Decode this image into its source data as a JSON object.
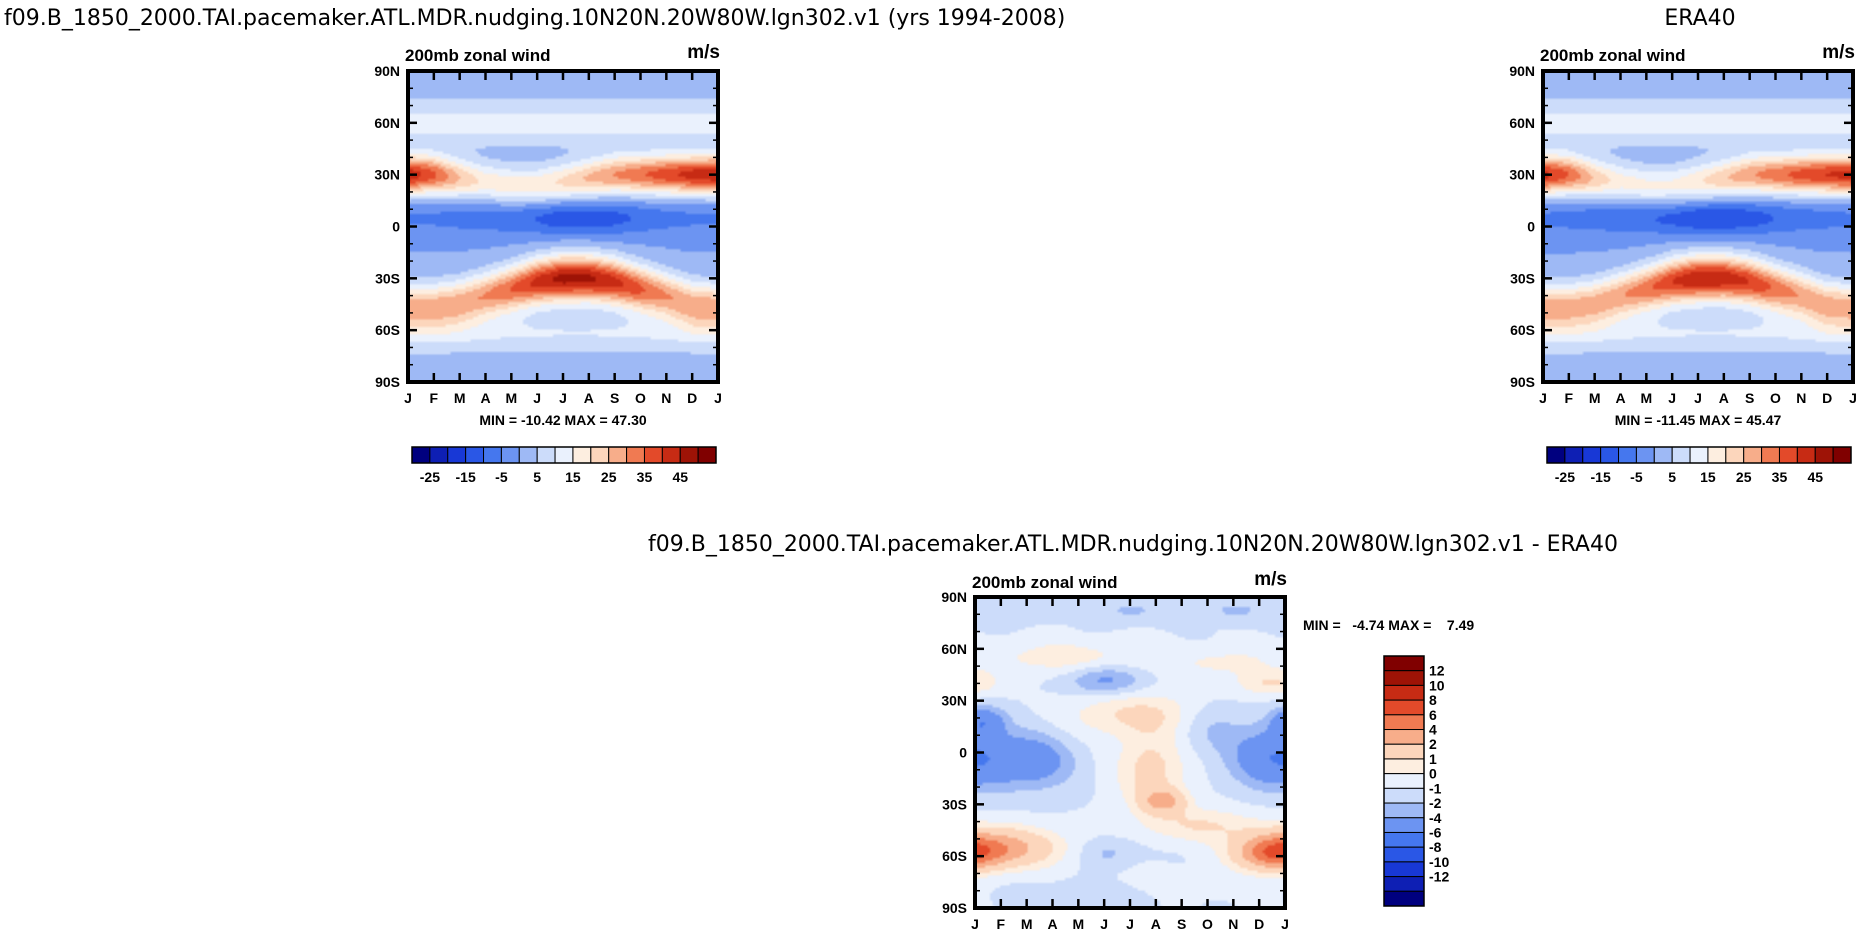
{
  "chart_data": [
    {
      "type": "heatmap",
      "title": "f09.B_1850_2000.TAI.pacemaker.ATL.MDR.nudging.10N20N.20W80W.lgn302.v1 (yrs 1994-2008)",
      "variable": "200mb zonal wind",
      "units": "m/s",
      "xlabel": "month",
      "ylabel": "latitude",
      "x_ticks": [
        "J",
        "F",
        "M",
        "A",
        "M",
        "J",
        "J",
        "A",
        "S",
        "O",
        "N",
        "D",
        "J"
      ],
      "y_ticks": [
        "90N",
        "60N",
        "30N",
        "0",
        "30S",
        "60S",
        "90S"
      ],
      "stats_text": "MIN = -10.42 MAX =  47.30",
      "min": -10.42,
      "max": 47.3,
      "levels": [
        -25,
        -20,
        -15,
        -10,
        -5,
        0,
        5,
        10,
        15,
        20,
        25,
        30,
        35,
        40,
        45
      ],
      "colorbar_labels": [
        "-25",
        "-15",
        "-5",
        "5",
        "15",
        "25",
        "35",
        "45"
      ],
      "colors": [
        "#00007f",
        "#0e1fb4",
        "#1838d6",
        "#2a57e6",
        "#4577ee",
        "#6c94f2",
        "#9eb9f5",
        "#ccdcfa",
        "#eaf1fd",
        "#fdeee0",
        "#fcd6bc",
        "#f7ad8a",
        "#f07a52",
        "#e34a2a",
        "#c72b14",
        "#9e1306",
        "#800000"
      ],
      "features": {
        "n_jet_strength": [
          44,
          36,
          25,
          18,
          18,
          18,
          21,
          26,
          30,
          34,
          38,
          42,
          44
        ],
        "n_jet_lat": [
          30,
          30,
          28,
          26,
          24,
          24,
          26,
          28,
          30,
          30,
          30,
          30,
          30
        ],
        "s_jet_strength": [
          27,
          27,
          28,
          30,
          35,
          42,
          47,
          46,
          42,
          36,
          30,
          28,
          27
        ],
        "s_jet_lat": [
          -46,
          -46,
          -44,
          -40,
          -36,
          -32,
          -30,
          -30,
          -32,
          -36,
          -40,
          -45,
          -46
        ],
        "eq_east": [
          -2,
          -2,
          -3,
          -4,
          -5,
          -7,
          -10,
          -10,
          -8,
          -5,
          -3,
          -2,
          -2
        ]
      }
    },
    {
      "type": "heatmap",
      "title": "ERA40",
      "variable": "200mb zonal wind",
      "units": "m/s",
      "xlabel": "month",
      "ylabel": "latitude",
      "x_ticks": [
        "J",
        "F",
        "M",
        "A",
        "M",
        "J",
        "J",
        "A",
        "S",
        "O",
        "N",
        "D",
        "J"
      ],
      "y_ticks": [
        "90N",
        "60N",
        "30N",
        "0",
        "30S",
        "60S",
        "90S"
      ],
      "stats_text": "MIN = -11.45 MAX =  45.47",
      "min": -11.45,
      "max": 45.47,
      "levels": [
        -25,
        -20,
        -15,
        -10,
        -5,
        0,
        5,
        10,
        15,
        20,
        25,
        30,
        35,
        40,
        45
      ],
      "colorbar_labels": [
        "-25",
        "-15",
        "-5",
        "5",
        "15",
        "25",
        "35",
        "45"
      ],
      "colors": [
        "#00007f",
        "#0e1fb4",
        "#1838d6",
        "#2a57e6",
        "#4577ee",
        "#6c94f2",
        "#9eb9f5",
        "#ccdcfa",
        "#eaf1fd",
        "#fdeee0",
        "#fcd6bc",
        "#f7ad8a",
        "#f07a52",
        "#e34a2a",
        "#c72b14",
        "#9e1306",
        "#800000"
      ],
      "features": {
        "n_jet_strength": [
          42,
          35,
          24,
          17,
          16,
          16,
          19,
          24,
          29,
          33,
          37,
          40,
          42
        ],
        "n_jet_lat": [
          30,
          30,
          28,
          26,
          24,
          24,
          26,
          28,
          30,
          30,
          30,
          30,
          30
        ],
        "s_jet_strength": [
          26,
          26,
          27,
          29,
          33,
          40,
          45,
          44,
          40,
          34,
          29,
          27,
          26
        ],
        "s_jet_lat": [
          -46,
          -46,
          -44,
          -40,
          -36,
          -32,
          -30,
          -30,
          -32,
          -36,
          -40,
          -45,
          -46
        ],
        "eq_east": [
          -2,
          -3,
          -4,
          -5,
          -6,
          -8,
          -11,
          -11,
          -9,
          -6,
          -4,
          -3,
          -2
        ]
      }
    },
    {
      "type": "heatmap",
      "title": "f09.B_1850_2000.TAI.pacemaker.ATL.MDR.nudging.10N20N.20W80W.lgn302.v1 - ERA40",
      "variable": "200mb zonal wind",
      "units": "m/s",
      "xlabel": "month",
      "ylabel": "latitude",
      "x_ticks": [
        "J",
        "F",
        "M",
        "A",
        "M",
        "J",
        "J",
        "A",
        "S",
        "O",
        "N",
        "D",
        "J"
      ],
      "y_ticks": [
        "90N",
        "60N",
        "30N",
        "0",
        "30S",
        "60S",
        "90S"
      ],
      "stats_text": "MIN =   -4.74 MAX =    7.49",
      "min": -4.74,
      "max": 7.49,
      "levels": [
        -12,
        -10,
        -8,
        -6,
        -4,
        -2,
        -1,
        0,
        1,
        2,
        4,
        6,
        8,
        10,
        12
      ],
      "colorbar_labels": [
        "12",
        "10",
        "8",
        "6",
        "4",
        "2",
        "1",
        "0",
        "-1",
        "-2",
        "-4",
        "-6",
        "-8",
        "-10",
        "-12"
      ],
      "colors": [
        "#00007f",
        "#0e1fb4",
        "#1838d6",
        "#2a57e6",
        "#4577ee",
        "#6c94f2",
        "#9eb9f5",
        "#ccdcfa",
        "#eaf1fd",
        "#fdeee0",
        "#fcd6bc",
        "#f7ad8a",
        "#f07a52",
        "#e34a2a",
        "#c72b14",
        "#9e1306",
        "#800000"
      ],
      "features": {
        "blobs": [
          {
            "m": 1.0,
            "lat": -55,
            "sm": 1.6,
            "sl": 8,
            "v": 4.5
          },
          {
            "m": 11.6,
            "lat": -58,
            "sm": 1.0,
            "sl": 7,
            "v": 6.5
          },
          {
            "m": 5.2,
            "lat": -58,
            "sm": 0.8,
            "sl": 6,
            "v": -1.3
          },
          {
            "m": 6.3,
            "lat": 22,
            "sm": 1.8,
            "sl": 9,
            "v": 2.2
          },
          {
            "m": 6.8,
            "lat": -10,
            "sm": 0.9,
            "sl": 16,
            "v": 2.6
          },
          {
            "m": 7.3,
            "lat": -28,
            "sm": 0.6,
            "sl": 5,
            "v": 4.0
          },
          {
            "m": 8.8,
            "lat": -42,
            "sm": 1.6,
            "sl": 7,
            "v": 2.0
          },
          {
            "m": 2.2,
            "lat": -5,
            "sm": 1.1,
            "sl": 11,
            "v": -3.0
          },
          {
            "m": 11.7,
            "lat": -3,
            "sm": 1.2,
            "sl": 12,
            "v": -4.0
          },
          {
            "m": 5.0,
            "lat": 42,
            "sm": 1.0,
            "sl": 6,
            "v": -2.5
          },
          {
            "m": 0.3,
            "lat": 18,
            "sm": 0.6,
            "sl": 6,
            "v": -3.2
          },
          {
            "m": 3.5,
            "lat": 55,
            "sm": 2.5,
            "sl": 7,
            "v": 1.5
          },
          {
            "m": 9.5,
            "lat": 52,
            "sm": 1.2,
            "sl": 6,
            "v": 1.2
          },
          {
            "m": 11.5,
            "lat": 40,
            "sm": 1.0,
            "sl": 5,
            "v": 2.0
          },
          {
            "m": 6.0,
            "lat": 82,
            "sm": 1.0,
            "sl": 5,
            "v": -1.2
          },
          {
            "m": 10.0,
            "lat": 82,
            "sm": 1.0,
            "sl": 5,
            "v": -1.2
          },
          {
            "m": 1.5,
            "lat": 82,
            "sm": 1.0,
            "sl": 5,
            "v": -1.0
          },
          {
            "m": 4.5,
            "lat": -82,
            "sm": 1.5,
            "sl": 5,
            "v": -1.0
          },
          {
            "m": 7.5,
            "lat": -75,
            "sm": 1.5,
            "sl": 6,
            "v": 0.6
          },
          {
            "m": 9.0,
            "lat": 15,
            "sm": 1.0,
            "sl": 10,
            "v": -1.3
          }
        ]
      }
    }
  ]
}
